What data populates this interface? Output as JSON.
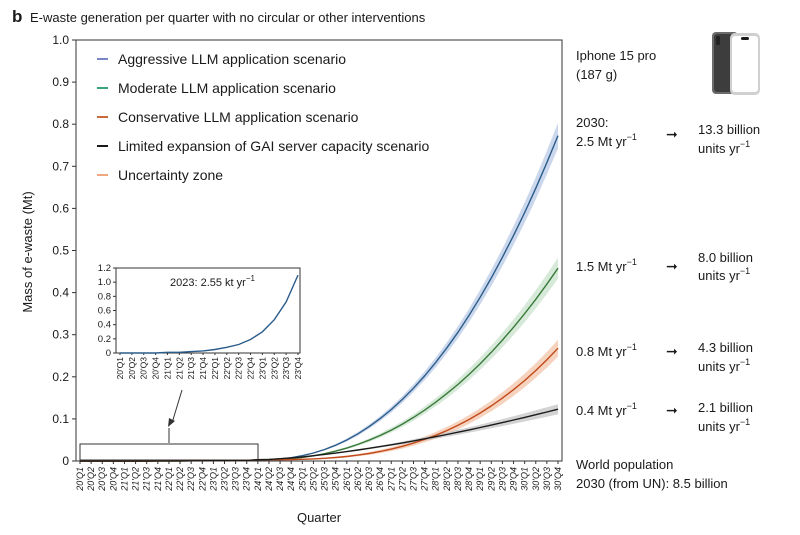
{
  "panel_label": "b",
  "chart_data": {
    "type": "line",
    "title": "E-waste generation per quarter with no circular or other interventions",
    "xlabel": "Quarter",
    "ylabel": "Mass of e-waste (Mt)",
    "ylim": [
      0,
      1.0
    ],
    "yticks": [
      "0",
      "0.1",
      "0.2",
      "0.3",
      "0.4",
      "0.5",
      "0.6",
      "0.7",
      "0.8",
      "0.9",
      "1.0"
    ],
    "categories": [
      "20'Q1",
      "20'Q2",
      "20'Q3",
      "20'Q4",
      "21'Q1",
      "21'Q2",
      "21'Q3",
      "21'Q4",
      "22'Q1",
      "22'Q2",
      "22'Q3",
      "22'Q4",
      "23'Q1",
      "23'Q2",
      "23'Q3",
      "23'Q4",
      "24'Q1",
      "24'Q2",
      "24'Q3",
      "24'Q4",
      "25'Q1",
      "25'Q2",
      "25'Q3",
      "25'Q4",
      "26'Q1",
      "26'Q2",
      "26'Q3",
      "26'Q4",
      "27'Q1",
      "27'Q2",
      "27'Q3",
      "27'Q4",
      "28'Q1",
      "28'Q2",
      "28'Q3",
      "28'Q4",
      "29'Q1",
      "29'Q2",
      "29'Q3",
      "29'Q4",
      "30'Q1",
      "30'Q2",
      "30'Q3",
      "30'Q4"
    ],
    "grid": false,
    "legend_position": "top-left",
    "series": [
      {
        "name": "Aggressive LLM application scenario",
        "color": "#7b86c6",
        "start_index": 16,
        "end_value": 0.77,
        "curve_power": 2.3,
        "band": 0.03
      },
      {
        "name": "Moderate LLM application scenario",
        "color": "#3aa37a",
        "start_index": 16,
        "end_value": 0.455,
        "curve_power": 2.3,
        "band": 0.025
      },
      {
        "name": "Conservative LLM application scenario",
        "color": "#c96a3a",
        "start_index": 16,
        "end_value": 0.265,
        "curve_power": 2.9,
        "band": 0.02
      },
      {
        "name": "Limited expansion of GAI server capacity scenario",
        "color": "#1a1a1a",
        "start_index": 16,
        "end_value": 0.12,
        "curve_power": 1.5,
        "band": 0.012
      }
    ],
    "legend": [
      {
        "label": "Aggressive LLM application scenario",
        "color": "#7b86c6"
      },
      {
        "label": "Moderate LLM application scenario",
        "color": "#3aa37a"
      },
      {
        "label": "Conservative LLM application scenario",
        "color": "#c96a3a"
      },
      {
        "label": "Limited expansion of GAI server capacity scenario",
        "color": "#1a1a1a"
      },
      {
        "label": "Uncertainty zone",
        "color": "#f0a67e"
      }
    ],
    "inset": {
      "annotation": "2023: 2.55 kt  yr",
      "annotation_sup": "−1",
      "ylim": [
        0,
        1.2
      ],
      "yticks": [
        "0",
        "0.2",
        "0.4",
        "0.6",
        "0.8",
        "1.0",
        "1.2"
      ],
      "categories": [
        "20'Q1",
        "20'Q2",
        "20'Q3",
        "20'Q4",
        "21'Q1",
        "21'Q2",
        "21'Q3",
        "21'Q4",
        "22'Q1",
        "22'Q2",
        "22'Q3",
        "22'Q4",
        "23'Q1",
        "23'Q2",
        "23'Q3",
        "23'Q4"
      ],
      "values": [
        0.0,
        0.0,
        0.0,
        0.0,
        0.01,
        0.01,
        0.02,
        0.03,
        0.05,
        0.08,
        0.12,
        0.19,
        0.3,
        0.47,
        0.72,
        1.1
      ],
      "color": "#2b5c8a"
    }
  },
  "annotations": {
    "device_name": "Iphone 15 pro",
    "device_mass": "(187 g)",
    "year_label": "2030:",
    "rows": [
      {
        "mass": "2.5 Mt yr",
        "units_value": "13.3 billion",
        "units_label": "units yr"
      },
      {
        "mass": "1.5 Mt yr",
        "units_value": "8.0 billion",
        "units_label": "units yr"
      },
      {
        "mass": "0.8 Mt yr",
        "units_value": "4.3 billion",
        "units_label": "units yr"
      },
      {
        "mass": "0.4 Mt yr",
        "units_value": "2.1 billion",
        "units_label": "units yr"
      }
    ],
    "sup": "−1",
    "world_population_line1": "World population",
    "world_population_line2": "2030 (from UN): 8.5 billion"
  }
}
